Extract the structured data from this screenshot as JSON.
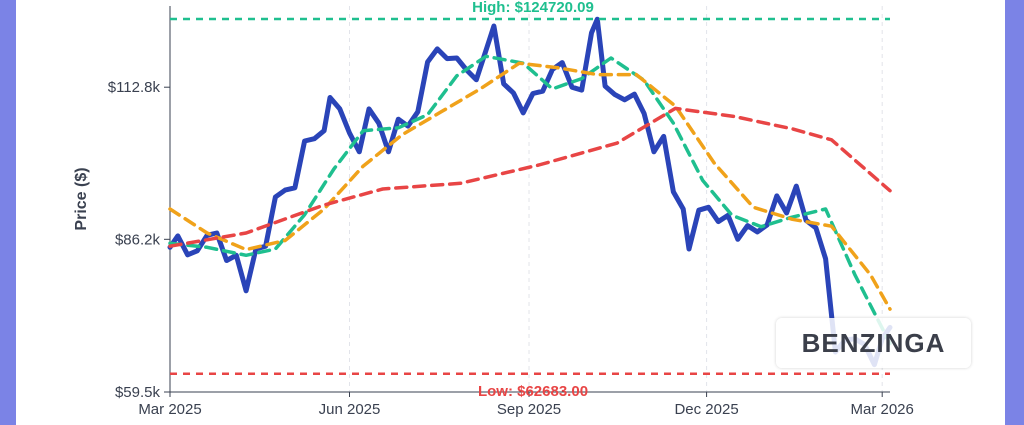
{
  "chart_data": {
    "type": "line",
    "title": "",
    "xlabel": "",
    "ylabel": "Price ($)",
    "x_tick_labels": [
      "Mar 2025",
      "Jun 2025",
      "Sep 2025",
      "Dec 2025",
      "Mar 2026"
    ],
    "y_tick_labels": [
      "$59.5k",
      "$86.2k",
      "$112.8k"
    ],
    "y_ticks": [
      59500,
      86200,
      112800
    ],
    "ylim": [
      59500,
      127000
    ],
    "x_range": [
      "2025-03-01",
      "2026-03-05"
    ],
    "grid": "vertical dashed",
    "high": {
      "label": "High: $124720.09",
      "value": 124720.09,
      "color": "#1fbf8f"
    },
    "low": {
      "label": "Low: $62683.00",
      "value": 62683.0,
      "color": "#e84545"
    },
    "series": [
      {
        "color": "#2a44b8",
        "style": "solid",
        "points": [
          [
            "2025-03-01",
            84800
          ],
          [
            "2025-03-05",
            86800
          ],
          [
            "2025-03-10",
            83500
          ],
          [
            "2025-03-15",
            84200
          ],
          [
            "2025-03-20",
            86900
          ],
          [
            "2025-03-25",
            87300
          ],
          [
            "2025-03-30",
            82500
          ],
          [
            "2025-04-04",
            83400
          ],
          [
            "2025-04-09",
            77200
          ],
          [
            "2025-04-14",
            84500
          ],
          [
            "2025-04-19",
            85000
          ],
          [
            "2025-04-24",
            93600
          ],
          [
            "2025-04-29",
            94800
          ],
          [
            "2025-05-04",
            95200
          ],
          [
            "2025-05-09",
            103400
          ],
          [
            "2025-05-14",
            103800
          ],
          [
            "2025-05-19",
            105200
          ],
          [
            "2025-05-22",
            111000
          ],
          [
            "2025-05-27",
            109000
          ],
          [
            "2025-06-01",
            104800
          ],
          [
            "2025-06-06",
            101500
          ],
          [
            "2025-06-11",
            109000
          ],
          [
            "2025-06-16",
            106500
          ],
          [
            "2025-06-21",
            101500
          ],
          [
            "2025-06-26",
            107200
          ],
          [
            "2025-07-01",
            106000
          ],
          [
            "2025-07-06",
            108500
          ],
          [
            "2025-07-11",
            117200
          ],
          [
            "2025-07-16",
            119500
          ],
          [
            "2025-07-21",
            117800
          ],
          [
            "2025-07-26",
            117900
          ],
          [
            "2025-07-31",
            115800
          ],
          [
            "2025-08-05",
            114100
          ],
          [
            "2025-08-10",
            119300
          ],
          [
            "2025-08-14",
            123500
          ],
          [
            "2025-08-19",
            113400
          ],
          [
            "2025-08-24",
            111800
          ],
          [
            "2025-08-29",
            108300
          ],
          [
            "2025-09-03",
            111700
          ],
          [
            "2025-09-08",
            112100
          ],
          [
            "2025-09-13",
            115900
          ],
          [
            "2025-09-18",
            117100
          ],
          [
            "2025-09-23",
            112800
          ],
          [
            "2025-09-28",
            112300
          ],
          [
            "2025-10-03",
            122300
          ],
          [
            "2025-10-06",
            124700
          ],
          [
            "2025-10-10",
            113000
          ],
          [
            "2025-10-15",
            111500
          ],
          [
            "2025-10-20",
            110600
          ],
          [
            "2025-10-25",
            111600
          ],
          [
            "2025-10-30",
            108200
          ],
          [
            "2025-11-04",
            101500
          ],
          [
            "2025-11-09",
            104200
          ],
          [
            "2025-11-14",
            94500
          ],
          [
            "2025-11-19",
            91500
          ],
          [
            "2025-11-22",
            84500
          ],
          [
            "2025-11-27",
            91300
          ],
          [
            "2025-12-02",
            91800
          ],
          [
            "2025-12-07",
            89300
          ],
          [
            "2025-12-12",
            90400
          ],
          [
            "2025-12-17",
            86200
          ],
          [
            "2025-12-22",
            88600
          ],
          [
            "2025-12-27",
            87500
          ],
          [
            "2026-01-01",
            88700
          ],
          [
            "2026-01-06",
            93800
          ],
          [
            "2026-01-11",
            90800
          ],
          [
            "2026-01-16",
            95500
          ],
          [
            "2026-01-21",
            89500
          ],
          [
            "2026-01-26",
            88200
          ],
          [
            "2026-01-31",
            82800
          ],
          [
            "2026-02-05",
            66500
          ],
          [
            "2026-02-10",
            68600
          ],
          [
            "2026-02-15",
            68800
          ],
          [
            "2026-02-20",
            67800
          ],
          [
            "2026-02-25",
            64300
          ],
          [
            "2026-03-01",
            68800
          ],
          [
            "2026-03-05",
            70800
          ]
        ]
      },
      {
        "color": "#1fbf8f",
        "style": "dashed",
        "points": [
          [
            "2025-03-01",
            85500
          ],
          [
            "2025-03-20",
            84800
          ],
          [
            "2025-04-09",
            83400
          ],
          [
            "2025-04-24",
            84500
          ],
          [
            "2025-05-09",
            90500
          ],
          [
            "2025-05-24",
            98500
          ],
          [
            "2025-06-08",
            105200
          ],
          [
            "2025-06-26",
            105700
          ],
          [
            "2025-07-11",
            108000
          ],
          [
            "2025-07-26",
            114800
          ],
          [
            "2025-08-10",
            118200
          ],
          [
            "2025-08-29",
            117000
          ],
          [
            "2025-09-13",
            112500
          ],
          [
            "2025-09-28",
            114300
          ],
          [
            "2025-10-13",
            117900
          ],
          [
            "2025-10-30",
            114000
          ],
          [
            "2025-11-14",
            106500
          ],
          [
            "2025-11-29",
            96500
          ],
          [
            "2025-12-14",
            90400
          ],
          [
            "2025-12-29",
            88400
          ],
          [
            "2026-01-13",
            90000
          ],
          [
            "2026-01-31",
            91500
          ],
          [
            "2026-02-15",
            80000
          ],
          [
            "2026-03-05",
            68000
          ]
        ]
      },
      {
        "color": "#f0a21a",
        "style": "dashed",
        "points": [
          [
            "2025-03-01",
            91500
          ],
          [
            "2025-03-20",
            87300
          ],
          [
            "2025-04-09",
            84400
          ],
          [
            "2025-04-29",
            86000
          ],
          [
            "2025-05-19",
            91500
          ],
          [
            "2025-06-08",
            99000
          ],
          [
            "2025-06-28",
            104500
          ],
          [
            "2025-07-18",
            108500
          ],
          [
            "2025-08-07",
            112500
          ],
          [
            "2025-08-27",
            117000
          ],
          [
            "2025-09-16",
            116200
          ],
          [
            "2025-10-06",
            115000
          ],
          [
            "2025-10-26",
            115000
          ],
          [
            "2025-11-15",
            109500
          ],
          [
            "2025-12-05",
            99500
          ],
          [
            "2025-12-25",
            91800
          ],
          [
            "2026-01-14",
            89700
          ],
          [
            "2026-02-03",
            88500
          ],
          [
            "2026-02-23",
            80000
          ],
          [
            "2026-03-05",
            74000
          ]
        ]
      },
      {
        "color": "#e84545",
        "style": "dashed",
        "points": [
          [
            "2025-03-01",
            85000
          ],
          [
            "2025-04-09",
            87300
          ],
          [
            "2025-05-19",
            92200
          ],
          [
            "2025-06-18",
            95000
          ],
          [
            "2025-07-28",
            96000
          ],
          [
            "2025-09-06",
            99200
          ],
          [
            "2025-10-16",
            103000
          ],
          [
            "2025-11-15",
            109100
          ],
          [
            "2025-12-15",
            107700
          ],
          [
            "2026-01-14",
            105500
          ],
          [
            "2026-02-03",
            103600
          ],
          [
            "2026-03-05",
            94700
          ]
        ]
      }
    ]
  },
  "watermark": "BENZINGA"
}
